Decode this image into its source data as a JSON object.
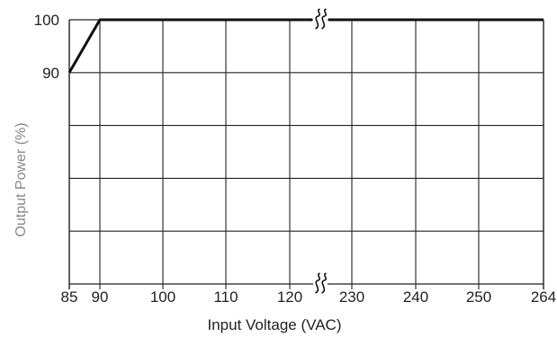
{
  "chart_data": {
    "type": "line",
    "title": "",
    "xlabel": "Input Voltage (VAC)",
    "ylabel": "Output Power (%)",
    "x_ticks": [
      "85",
      "90",
      "100",
      "110",
      "120",
      "230",
      "240",
      "250",
      "264"
    ],
    "y_ticks": [
      "100",
      "90"
    ],
    "axis_break": "between 120 and 230",
    "grid": true,
    "series": [
      {
        "x": [
          85,
          90,
          264
        ],
        "y": [
          90,
          100,
          100
        ]
      }
    ],
    "colors": {
      "line": "#111111",
      "grid": "#222222"
    }
  }
}
